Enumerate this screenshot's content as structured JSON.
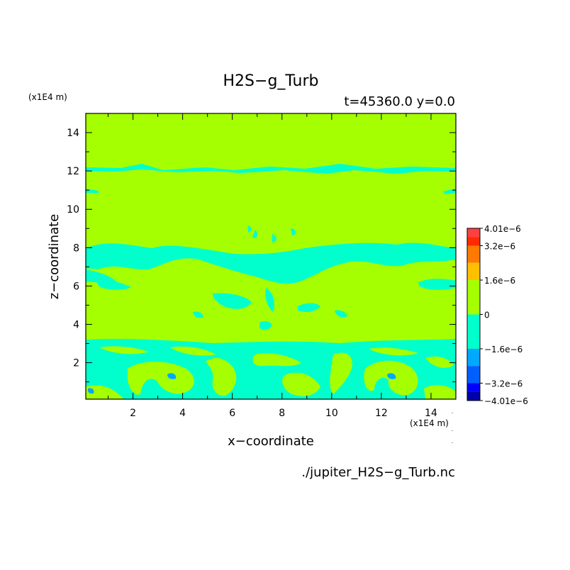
{
  "chart_data": {
    "type": "heatmap",
    "title": "H2S−g_Turb",
    "subtitle": "t=45360.0 y=0.0",
    "xlabel": "x−coordinate",
    "ylabel": "z−coordinate",
    "x_unit": "(x1E4 m)",
    "y_unit": "(x1E4 m)",
    "source_file": "./jupiter_H2S−g_Turb.nc",
    "xlim": [
      0.1,
      15.0
    ],
    "ylim": [
      0.1,
      15.0
    ],
    "xticks": [
      2,
      4,
      6,
      8,
      10,
      12,
      14
    ],
    "yticks": [
      2,
      4,
      6,
      8,
      10,
      12,
      14
    ],
    "xtick_labels": [
      "2",
      "4",
      "6",
      "8",
      "10",
      "12",
      "14"
    ],
    "ytick_labels": [
      "2",
      "4",
      "6",
      "8",
      "10",
      "12",
      "14"
    ],
    "background_level": "0",
    "colorbar": {
      "labels": [
        {
          "text": "4.01e−6",
          "value": 4.01e-06
        },
        {
          "text": "3.2e−6",
          "value": 3.2e-06
        },
        {
          "text": "1.6e−6",
          "value": 1.6e-06
        },
        {
          "text": "0",
          "value": 0
        },
        {
          "text": "−1.6e−6",
          "value": -1.6e-06
        },
        {
          "text": "−3.2e−6",
          "value": -3.2e-06
        },
        {
          "text": "−4.01e−6",
          "value": -4.01e-06
        }
      ],
      "bands": [
        {
          "from": 3.6e-06,
          "to": 4.01e-06,
          "color": "#ff4040"
        },
        {
          "from": 3.2e-06,
          "to": 3.6e-06,
          "color": "#ff2a00"
        },
        {
          "from": 2.4e-06,
          "to": 3.2e-06,
          "color": "#ff7a00"
        },
        {
          "from": 1.6e-06,
          "to": 2.4e-06,
          "color": "#ffc000"
        },
        {
          "from": 0,
          "to": 1.6e-06,
          "color": "#a6ff00"
        },
        {
          "from": -1.6e-06,
          "to": 0,
          "color": "#00ffcc"
        },
        {
          "from": -2.4e-06,
          "to": -1.6e-06,
          "color": "#00a8ff"
        },
        {
          "from": -3.2e-06,
          "to": -2.4e-06,
          "color": "#0060ff"
        },
        {
          "from": -3.6e-06,
          "to": -3.2e-06,
          "color": "#0000ff"
        },
        {
          "from": -4.01e-06,
          "to": -3.6e-06,
          "color": "#0000aa"
        }
      ]
    },
    "colors": {
      "positive_low": "#a6ff00",
      "negative_low": "#00ffcc",
      "negative_mid": "#00a8ff"
    },
    "negative_regions": [
      {
        "x": [
          0.1,
          15.0
        ],
        "z": [
          11.8,
          12.1
        ]
      },
      {
        "x": [
          0.1,
          15.0
        ],
        "z": [
          0.1,
          3.0
        ]
      },
      {
        "x": [
          0.1,
          15.0
        ],
        "z": [
          5.5,
          9.3
        ]
      },
      {
        "x": [
          7.0,
          8.0
        ],
        "z": [
          3.6,
          4.1
        ]
      }
    ]
  }
}
